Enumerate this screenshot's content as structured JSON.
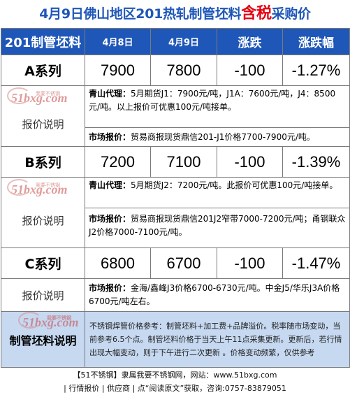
{
  "title": {
    "main": "4月9日佛山地区201热轧制管坯料",
    "highlight": "含税",
    "suffix": "采购价"
  },
  "header": {
    "name": "201制管坯料",
    "date1": "4月8日",
    "date2": "4月9日",
    "change": "涨跌",
    "change_pct": "涨跌幅"
  },
  "rows": [
    {
      "series": "A系列",
      "price_prev": "7900",
      "price_now": "7800",
      "change": "-100",
      "change_pct": "-1.27%",
      "note_label": "报价说明",
      "notes": [
        {
          "source": "青山代理：",
          "text": "5月期货J1：7900元/吨，J1A：7600元/吨，J4：8500元/吨。以上报价可优惠100元/吨接单。"
        },
        {
          "source": "市场报价：",
          "text": "贸易商报现货鼎信201-J1价格7700-7900元/吨。"
        }
      ]
    },
    {
      "series": "B系列",
      "price_prev": "7200",
      "price_now": "7100",
      "change": "-100",
      "change_pct": "-1.39%",
      "note_label": "报价说明",
      "notes": [
        {
          "source": "青山代理：",
          "text": "5月期货J2：7200元/吨。此报价可优惠100元/吨接单。"
        },
        {
          "source": "市场报价：",
          "text": "贸易商报现货鼎信201J2窄带7000-7200元/吨；甬钢联众J2价格7000-7100元/吨。"
        }
      ]
    },
    {
      "series": "C系列",
      "price_prev": "6800",
      "price_now": "6700",
      "change": "-100",
      "change_pct": "-1.47%",
      "note_label": "报价说明",
      "notes": [
        {
          "source": "市场报价：",
          "text": "金海/鑫峰J3价格6700-6730元/吨。中金J5/华乐J3A价格6700元/吨左右。"
        }
      ]
    }
  ],
  "footer": {
    "label": "制管坯料说明",
    "note": "不锈钢焊管价格参考：制管坯料+加工费+品牌溢价。税率随市场变动，当前参考6.5个点。制管坯料价格于当天上午11点采集更新。更新后，若行情出现大幅变动，则于下午进行二次更新 。价格变动频繁，仅供参考"
  },
  "watermark": {
    "text": "51bxg.com",
    "sub": "我要不锈钢"
  },
  "bottom": {
    "line1": "【51不锈钢】隶属我要不锈钢网，网站：www.51bxg.com",
    "line2": "| 行情报价 | 供应商 | 点“阅读原文”获取，咨询:0757-83879051"
  },
  "colors": {
    "header_bg": "#1f57b8",
    "title_blue": "#1f57b8",
    "title_red": "#e60012",
    "footer_bg": "#c6d9f1"
  }
}
